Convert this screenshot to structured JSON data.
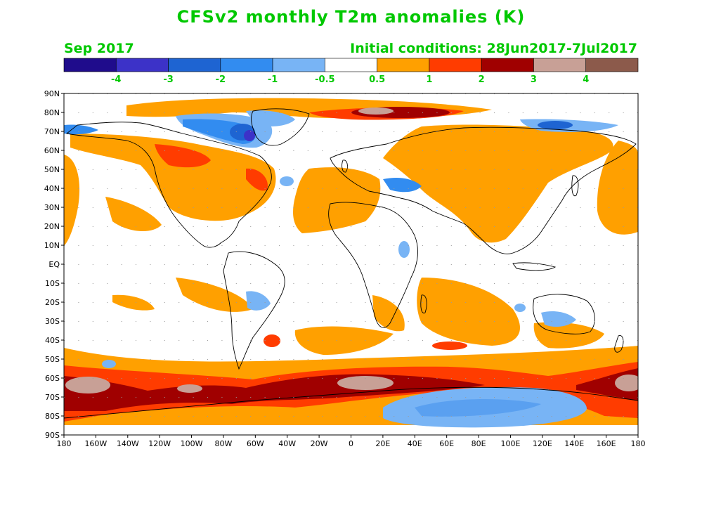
{
  "header": {
    "title": "CFSv2 monthly T2m anomalies (K)",
    "month": "Sep 2017",
    "initial_conditions": "Initial conditions: 28Jun2017-7Jul2017"
  },
  "colorbar": {
    "colors": [
      "#1f0c8c",
      "#3c32c8",
      "#1e64d2",
      "#328cf0",
      "#78b4f5",
      "#ffffff",
      "#ffa000",
      "#ff3c00",
      "#a00000",
      "#c8a096",
      "#8c5a4b"
    ],
    "labels": [
      "-4",
      "-3",
      "-2",
      "-1",
      "-0.5",
      "0.5",
      "1",
      "2",
      "3",
      "4"
    ]
  },
  "axes": {
    "lat_labels": [
      "90N",
      "80N",
      "70N",
      "60N",
      "50N",
      "40N",
      "30N",
      "20N",
      "10N",
      "EQ",
      "10S",
      "20S",
      "30S",
      "40S",
      "50S",
      "60S",
      "70S",
      "80S",
      "90S"
    ],
    "lon_labels": [
      "180",
      "160W",
      "140W",
      "120W",
      "100W",
      "80W",
      "60W",
      "40W",
      "20W",
      "0",
      "20E",
      "40E",
      "60E",
      "80E",
      "100E",
      "120E",
      "140E",
      "160E",
      "180"
    ]
  },
  "colors": {
    "title_green": "#00c800",
    "warm": "#ffa000",
    "warmer": "#ff3c00",
    "hot": "#a00000",
    "very_hot": "#c8a096",
    "cool": "#78b4f5",
    "cooler": "#328cf0",
    "cold": "#1e64d2",
    "very_cold": "#3c32c8"
  }
}
